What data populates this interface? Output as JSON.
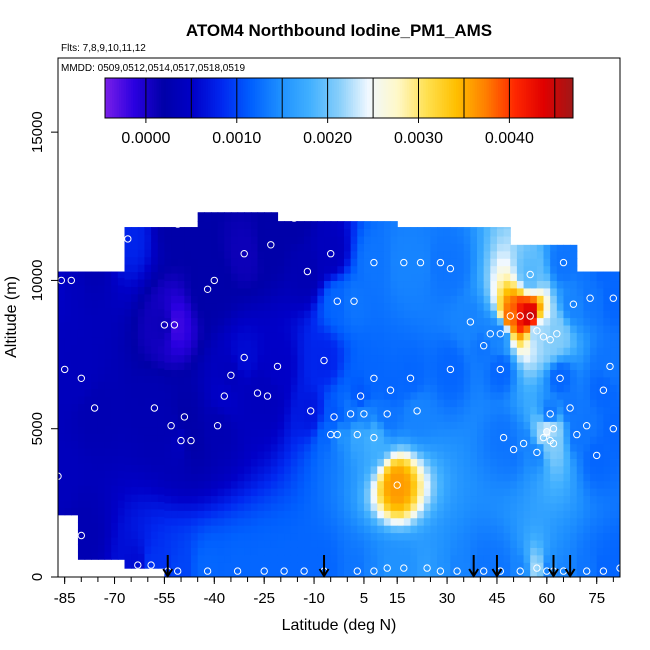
{
  "chart_data": {
    "type": "heatmap",
    "title": "ATOM4 Northbound Iodine_PM1_AMS",
    "flights_note": "Flts: 7,8,9,10,11,12",
    "dates_note": "MMDD: 0509,0512,0514,0517,0518,0519",
    "xlabel": "Latitude (deg N)",
    "ylabel": "Altitude (m)",
    "xlim": [
      -87,
      82
    ],
    "ylim": [
      0,
      17500
    ],
    "x_ticks": [
      -85,
      -70,
      -55,
      -40,
      -25,
      -10,
      5,
      15,
      30,
      45,
      60,
      75
    ],
    "y_ticks": [
      0,
      5000,
      10000,
      15000
    ],
    "colorbar": {
      "range": [
        -0.00045,
        0.0047
      ],
      "ticks": [
        0.0,
        0.001,
        0.002,
        0.003,
        0.004
      ],
      "tick_labels": [
        "0.0000",
        "0.0010",
        "0.0020",
        "0.0030",
        "0.0040"
      ],
      "colors": [
        "#7a1fe8",
        "#2a00e0",
        "#0000a8",
        "#0000c8",
        "#0028f0",
        "#0060ff",
        "#1e90ff",
        "#41b0ff",
        "#87cefa",
        "#f0f8ff",
        "#fff8c8",
        "#ffe050",
        "#ffc000",
        "#ff8000",
        "#ff2800",
        "#e00000",
        "#a01818"
      ]
    },
    "profile_sites": [
      -54,
      -7,
      38,
      45,
      62,
      67
    ],
    "samples": [
      {
        "x": -86,
        "y": 10000,
        "v": 0.0005
      },
      {
        "x": -83,
        "y": 10000,
        "v": 0.0004
      },
      {
        "x": -78,
        "y": 10600,
        "v": 0.0003
      },
      {
        "x": -75,
        "y": 10600,
        "v": 0.0003
      },
      {
        "x": -71,
        "y": 11200,
        "v": 0.0007
      },
      {
        "x": -66,
        "y": 11400,
        "v": 0.0008
      },
      {
        "x": -51,
        "y": 11900,
        "v": 0.0002
      },
      {
        "x": -40,
        "y": 10000,
        "v": 0.0002
      },
      {
        "x": -42,
        "y": 9700,
        "v": 0.0002
      },
      {
        "x": -31,
        "y": 10900,
        "v": 0.0001
      },
      {
        "x": -23,
        "y": 11200,
        "v": 0.0002
      },
      {
        "x": -16,
        "y": 12100,
        "v": 0.0002
      },
      {
        "x": -12,
        "y": 10300,
        "v": 0.0003
      },
      {
        "x": -5,
        "y": 10900,
        "v": 0.0004
      },
      {
        "x": -3,
        "y": 9300,
        "v": 0.0012
      },
      {
        "x": 2,
        "y": 9300,
        "v": 0.0013
      },
      {
        "x": 8,
        "y": 10600,
        "v": 0.0013
      },
      {
        "x": 17,
        "y": 10600,
        "v": 0.0014
      },
      {
        "x": 22,
        "y": 10600,
        "v": 0.0014
      },
      {
        "x": 28,
        "y": 10600,
        "v": 0.0013
      },
      {
        "x": 31,
        "y": 10400,
        "v": 0.0013
      },
      {
        "x": -55,
        "y": 8500,
        "v": 0.0001
      },
      {
        "x": -52,
        "y": 8500,
        "v": -0.0002
      },
      {
        "x": -31,
        "y": 7400,
        "v": 0.0006
      },
      {
        "x": -21,
        "y": 7100,
        "v": 0.0005
      },
      {
        "x": -35,
        "y": 6800,
        "v": 0.0004
      },
      {
        "x": -80,
        "y": 6700,
        "v": 0.0004
      },
      {
        "x": -85,
        "y": 7000,
        "v": 0.0004
      },
      {
        "x": -7,
        "y": 7300,
        "v": 0.0008
      },
      {
        "x": 8,
        "y": 6700,
        "v": 0.0012
      },
      {
        "x": 19,
        "y": 6700,
        "v": 0.0012
      },
      {
        "x": 31,
        "y": 7000,
        "v": 0.0012
      },
      {
        "x": 13,
        "y": 6300,
        "v": 0.0012
      },
      {
        "x": 4,
        "y": 6100,
        "v": 0.0011
      },
      {
        "x": 37,
        "y": 8600,
        "v": 0.0014
      },
      {
        "x": 43,
        "y": 8200,
        "v": 0.0014
      },
      {
        "x": 41,
        "y": 7800,
        "v": 0.0013
      },
      {
        "x": 46,
        "y": 8200,
        "v": 0.0014
      },
      {
        "x": 49,
        "y": 8800,
        "v": 0.0038
      },
      {
        "x": 52,
        "y": 8800,
        "v": 0.0042
      },
      {
        "x": 55,
        "y": 8800,
        "v": 0.0045
      },
      {
        "x": 57,
        "y": 8300,
        "v": 0.0022
      },
      {
        "x": 59,
        "y": 8100,
        "v": 0.0022
      },
      {
        "x": 61,
        "y": 8000,
        "v": 0.0021
      },
      {
        "x": 63,
        "y": 8200,
        "v": 0.0021
      },
      {
        "x": 68,
        "y": 9200,
        "v": 0.0014
      },
      {
        "x": 73,
        "y": 9400,
        "v": 0.0013
      },
      {
        "x": 80,
        "y": 9400,
        "v": 0.0012
      },
      {
        "x": 55,
        "y": 10200,
        "v": 0.0019
      },
      {
        "x": 65,
        "y": 10600,
        "v": 0.0013
      },
      {
        "x": 72,
        "y": 10700,
        "v": 0.0013
      },
      {
        "x": 74,
        "y": 11000,
        "v": 0.0012
      },
      {
        "x": 77,
        "y": 10500,
        "v": 0.0012
      },
      {
        "x": 46,
        "y": 7000,
        "v": 0.0012
      },
      {
        "x": 64,
        "y": 6700,
        "v": 0.0012
      },
      {
        "x": 79,
        "y": 7100,
        "v": 0.0013
      },
      {
        "x": -76,
        "y": 5700,
        "v": 0.0003
      },
      {
        "x": -58,
        "y": 5700,
        "v": 0.0003
      },
      {
        "x": -49,
        "y": 5400,
        "v": 0.0002
      },
      {
        "x": -47,
        "y": 4600,
        "v": 0.0002
      },
      {
        "x": -50,
        "y": 4600,
        "v": 0.0004
      },
      {
        "x": -53,
        "y": 5100,
        "v": 0.0003
      },
      {
        "x": -39,
        "y": 5100,
        "v": 0.0003
      },
      {
        "x": -37,
        "y": 6100,
        "v": 0.0005
      },
      {
        "x": -27,
        "y": 6200,
        "v": 0.0004
      },
      {
        "x": -24,
        "y": 6100,
        "v": 0.0004
      },
      {
        "x": -11,
        "y": 5600,
        "v": 0.0007
      },
      {
        "x": -4,
        "y": 5400,
        "v": 0.0011
      },
      {
        "x": 1,
        "y": 5500,
        "v": 0.0013
      },
      {
        "x": 5,
        "y": 5500,
        "v": 0.0014
      },
      {
        "x": 8,
        "y": 4700,
        "v": 0.0018
      },
      {
        "x": 12,
        "y": 5500,
        "v": 0.0013
      },
      {
        "x": 21,
        "y": 5600,
        "v": 0.0014
      },
      {
        "x": -5,
        "y": 4800,
        "v": 0.0012
      },
      {
        "x": -3,
        "y": 4800,
        "v": 0.0015
      },
      {
        "x": 3,
        "y": 4800,
        "v": 0.0017
      },
      {
        "x": 47,
        "y": 4700,
        "v": 0.0013
      },
      {
        "x": 50,
        "y": 4300,
        "v": 0.0013
      },
      {
        "x": 53,
        "y": 4500,
        "v": 0.0014
      },
      {
        "x": 57,
        "y": 4200,
        "v": 0.0014
      },
      {
        "x": 59,
        "y": 4700,
        "v": 0.0022
      },
      {
        "x": 60,
        "y": 4900,
        "v": 0.0024
      },
      {
        "x": 62,
        "y": 5000,
        "v": 0.0022
      },
      {
        "x": 61,
        "y": 4600,
        "v": 0.002
      },
      {
        "x": 62,
        "y": 4500,
        "v": 0.0021
      },
      {
        "x": 69,
        "y": 4800,
        "v": 0.0013
      },
      {
        "x": 72,
        "y": 5100,
        "v": 0.0013
      },
      {
        "x": 67,
        "y": 5700,
        "v": 0.0013
      },
      {
        "x": 61,
        "y": 5500,
        "v": 0.0013
      },
      {
        "x": 77,
        "y": 6300,
        "v": 0.0012
      },
      {
        "x": 80,
        "y": 5000,
        "v": 0.0012
      },
      {
        "x": 75,
        "y": 4100,
        "v": 0.0012
      },
      {
        "x": 15,
        "y": 3100,
        "v": 0.0036
      },
      {
        "x": -87,
        "y": 3400,
        "v": 0.0004
      },
      {
        "x": -80,
        "y": 1400,
        "v": 0.0003
      },
      {
        "x": -63,
        "y": 400,
        "v": 0.0006
      },
      {
        "x": -59,
        "y": 400,
        "v": 0.0009
      },
      {
        "x": -54,
        "y": 200,
        "v": 0.0009
      },
      {
        "x": -51,
        "y": 200,
        "v": 0.001
      },
      {
        "x": -42,
        "y": 200,
        "v": 0.0012
      },
      {
        "x": -33,
        "y": 200,
        "v": 0.0012
      },
      {
        "x": -25,
        "y": 200,
        "v": 0.0012
      },
      {
        "x": -19,
        "y": 200,
        "v": 0.0012
      },
      {
        "x": -13,
        "y": 200,
        "v": 0.0012
      },
      {
        "x": -7,
        "y": 200,
        "v": 0.0012
      },
      {
        "x": 3,
        "y": 200,
        "v": 0.0013
      },
      {
        "x": 8,
        "y": 200,
        "v": 0.0014
      },
      {
        "x": 12,
        "y": 300,
        "v": 0.0015
      },
      {
        "x": 17,
        "y": 300,
        "v": 0.0015
      },
      {
        "x": 24,
        "y": 300,
        "v": 0.0016
      },
      {
        "x": 28,
        "y": 200,
        "v": 0.0015
      },
      {
        "x": 33,
        "y": 200,
        "v": 0.0014
      },
      {
        "x": 41,
        "y": 200,
        "v": 0.0013
      },
      {
        "x": 46,
        "y": 200,
        "v": 0.0013
      },
      {
        "x": 52,
        "y": 200,
        "v": 0.0014
      },
      {
        "x": 57,
        "y": 300,
        "v": 0.0022
      },
      {
        "x": 60,
        "y": 200,
        "v": 0.0014
      },
      {
        "x": 62,
        "y": 200,
        "v": 0.0015
      },
      {
        "x": 65,
        "y": 200,
        "v": 0.0014
      },
      {
        "x": 72,
        "y": 200,
        "v": 0.0013
      },
      {
        "x": 77,
        "y": 200,
        "v": 0.0012
      },
      {
        "x": 82,
        "y": 300,
        "v": 0.0012
      }
    ]
  }
}
